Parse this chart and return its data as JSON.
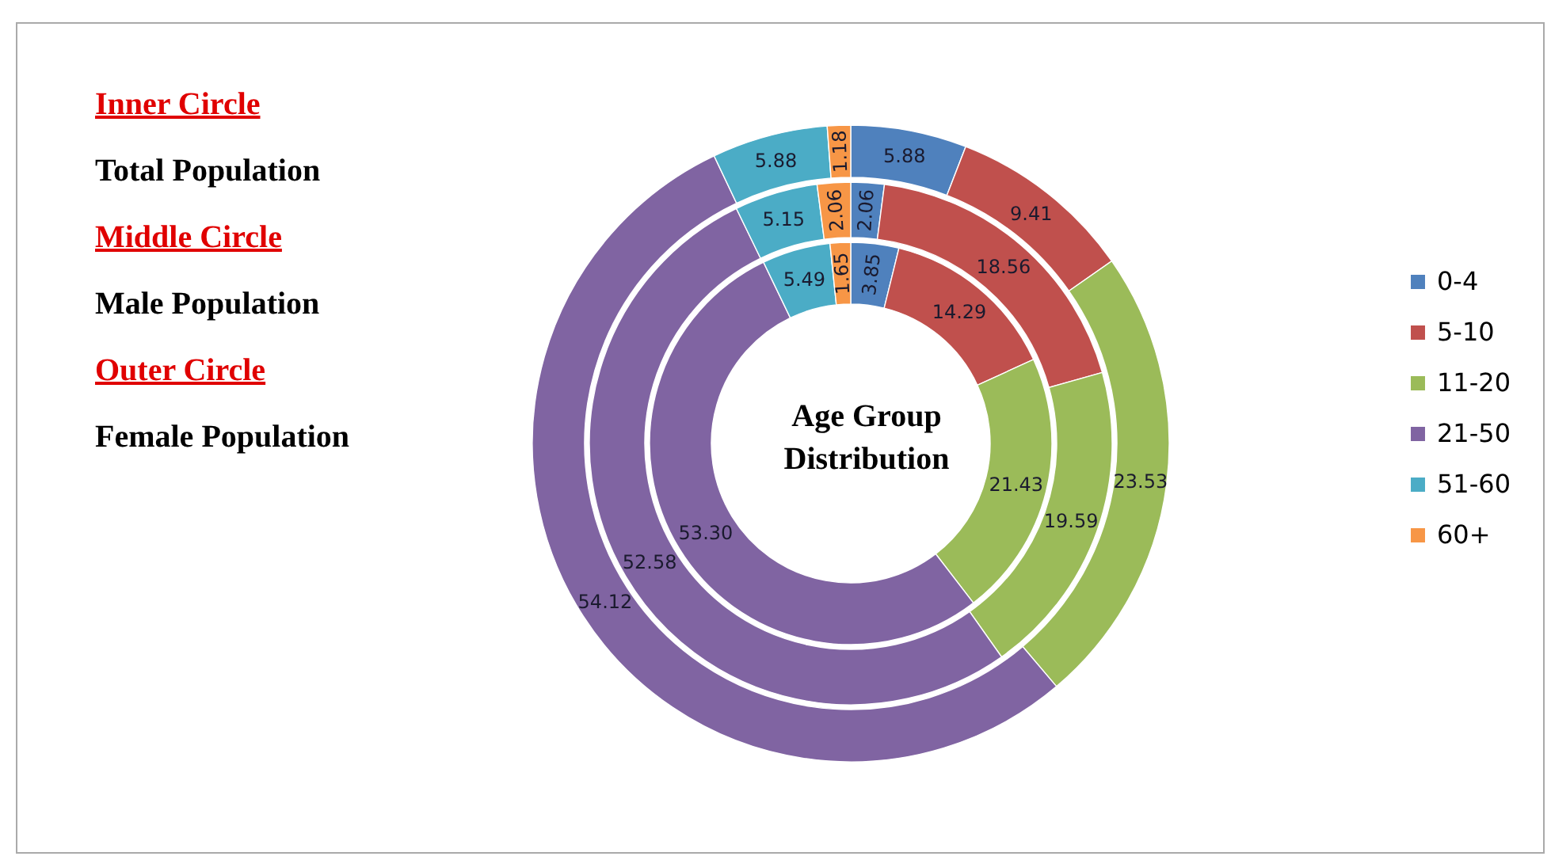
{
  "chart_data": {
    "type": "donut",
    "title": "Age Group Distribution",
    "categories": [
      "0-4",
      "5-10",
      "11-20",
      "21-50",
      "51-60",
      "60+"
    ],
    "colors": [
      "#4f81bd",
      "#c0504d",
      "#9bbb59",
      "#8064a2",
      "#4bacc6",
      "#f79646"
    ],
    "series": [
      {
        "values": [
          3.85,
          14.29,
          21.43,
          53.3,
          5.49,
          1.65
        ],
        "value_labels": [
          "3.85",
          "14.29",
          "21.43",
          "53.30",
          "5.49",
          "1.65"
        ]
      },
      {
        "values": [
          2.06,
          18.56,
          19.59,
          52.58,
          5.15,
          2.06
        ],
        "value_labels": [
          "2.06",
          "18.56",
          "19.59",
          "52.58",
          "5.15",
          "2.06"
        ]
      },
      {
        "values": [
          5.88,
          9.41,
          23.53,
          54.12,
          5.88,
          1.18
        ],
        "value_labels": [
          "5.88",
          "9.41",
          "23.53",
          "54.12",
          "5.88",
          "1.18"
        ]
      }
    ],
    "annotations": [
      "Inner Circle",
      "Total Population",
      "Middle Circle",
      "Male Population",
      "Outer Circle",
      "Female Population"
    ],
    "legend": "right"
  }
}
